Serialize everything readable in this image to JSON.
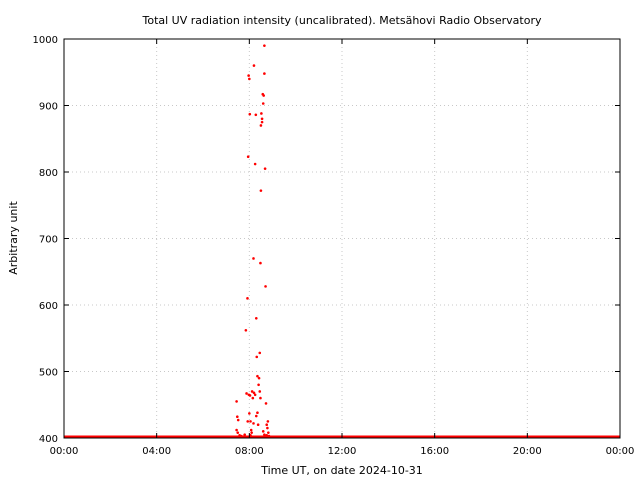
{
  "chart_data": {
    "type": "scatter",
    "title": "Total UV radiation intensity (uncalibrated). Metsähovi Radio Observatory",
    "xlabel": "Time UT, on date 2024-10-31",
    "ylabel": "Arbitrary unit",
    "xlim": [
      0,
      24
    ],
    "ylim": [
      400,
      1000
    ],
    "x_ticks": [
      0,
      4,
      8,
      12,
      16,
      20,
      24
    ],
    "x_tick_labels": [
      "00:00",
      "04:00",
      "08:00",
      "12:00",
      "16:00",
      "20:00",
      "00:00"
    ],
    "y_ticks": [
      400,
      500,
      600,
      700,
      800,
      900,
      1000
    ],
    "y_tick_labels": [
      "400",
      "500",
      "600",
      "700",
      "800",
      "900",
      "1000"
    ],
    "grid": true,
    "marker_color": "#ff0000",
    "baseline": {
      "value": 400,
      "x_start": 0,
      "x_end": 24
    },
    "points": [
      {
        "x": 7.45,
        "y": 455
      },
      {
        "x": 7.48,
        "y": 432
      },
      {
        "x": 7.52,
        "y": 427
      },
      {
        "x": 7.45,
        "y": 412
      },
      {
        "x": 7.5,
        "y": 408
      },
      {
        "x": 7.58,
        "y": 404
      },
      {
        "x": 7.65,
        "y": 403
      },
      {
        "x": 7.72,
        "y": 402
      },
      {
        "x": 7.8,
        "y": 405
      },
      {
        "x": 7.85,
        "y": 562
      },
      {
        "x": 7.88,
        "y": 467
      },
      {
        "x": 7.92,
        "y": 610
      },
      {
        "x": 7.95,
        "y": 823
      },
      {
        "x": 7.97,
        "y": 945
      },
      {
        "x": 8.0,
        "y": 940
      },
      {
        "x": 8.02,
        "y": 887
      },
      {
        "x": 7.98,
        "y": 465
      },
      {
        "x": 8.03,
        "y": 464
      },
      {
        "x": 7.93,
        "y": 425
      },
      {
        "x": 8.0,
        "y": 437
      },
      {
        "x": 8.05,
        "y": 425
      },
      {
        "x": 8.08,
        "y": 412
      },
      {
        "x": 8.1,
        "y": 408
      },
      {
        "x": 8.12,
        "y": 470
      },
      {
        "x": 8.15,
        "y": 460
      },
      {
        "x": 8.18,
        "y": 422
      },
      {
        "x": 8.18,
        "y": 670
      },
      {
        "x": 8.2,
        "y": 960
      },
      {
        "x": 8.25,
        "y": 812
      },
      {
        "x": 8.28,
        "y": 886
      },
      {
        "x": 8.3,
        "y": 580
      },
      {
        "x": 8.32,
        "y": 522
      },
      {
        "x": 8.35,
        "y": 493
      },
      {
        "x": 8.3,
        "y": 433
      },
      {
        "x": 8.35,
        "y": 438
      },
      {
        "x": 8.38,
        "y": 420
      },
      {
        "x": 8.25,
        "y": 465
      },
      {
        "x": 8.4,
        "y": 480
      },
      {
        "x": 8.42,
        "y": 490
      },
      {
        "x": 8.45,
        "y": 528
      },
      {
        "x": 8.48,
        "y": 663
      },
      {
        "x": 8.5,
        "y": 772
      },
      {
        "x": 8.5,
        "y": 870
      },
      {
        "x": 8.52,
        "y": 888
      },
      {
        "x": 8.55,
        "y": 880
      },
      {
        "x": 8.55,
        "y": 875
      },
      {
        "x": 8.58,
        "y": 917
      },
      {
        "x": 8.6,
        "y": 903
      },
      {
        "x": 8.62,
        "y": 915
      },
      {
        "x": 8.65,
        "y": 948
      },
      {
        "x": 8.65,
        "y": 990
      },
      {
        "x": 8.68,
        "y": 805
      },
      {
        "x": 8.7,
        "y": 628
      },
      {
        "x": 8.72,
        "y": 452
      },
      {
        "x": 8.75,
        "y": 420
      },
      {
        "x": 8.78,
        "y": 415
      },
      {
        "x": 8.8,
        "y": 425
      },
      {
        "x": 8.82,
        "y": 408
      },
      {
        "x": 8.85,
        "y": 403
      },
      {
        "x": 8.75,
        "y": 404
      },
      {
        "x": 8.45,
        "y": 470
      },
      {
        "x": 8.48,
        "y": 460
      },
      {
        "x": 8.2,
        "y": 468
      },
      {
        "x": 8.6,
        "y": 410
      },
      {
        "x": 8.65,
        "y": 405
      },
      {
        "x": 8.05,
        "y": 404
      }
    ]
  }
}
